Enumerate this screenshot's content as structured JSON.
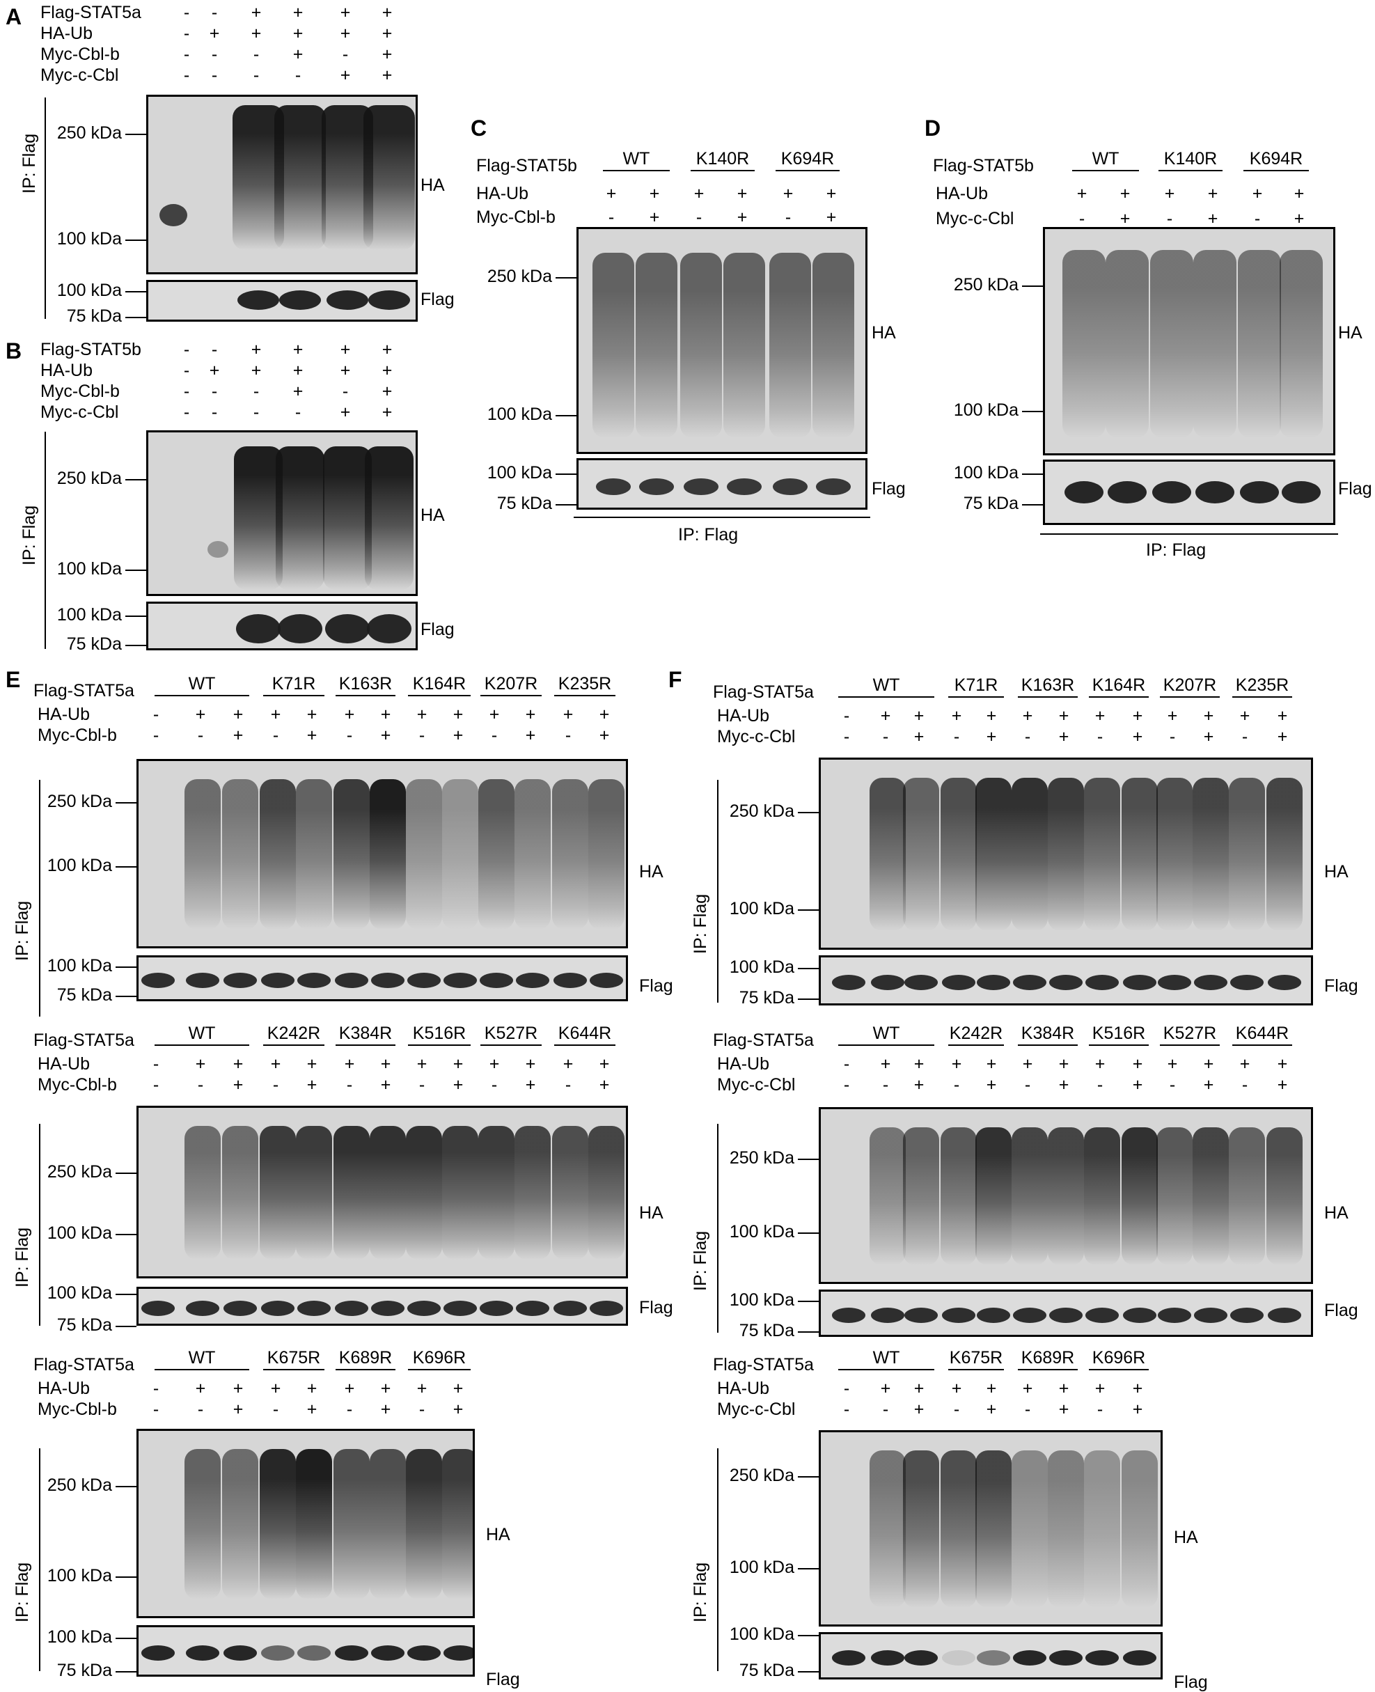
{
  "panels": {
    "A": "A",
    "B": "B",
    "C": "C",
    "D": "D",
    "E": "E",
    "F": "F"
  },
  "rows": {
    "flag_stat5a": "Flag-STAT5a",
    "flag_stat5b": "Flag-STAT5b",
    "ha_ub": "HA-Ub",
    "myc_cblb": "Myc-Cbl-b",
    "myc_ccbl": "Myc-c-Cbl"
  },
  "markers": {
    "kda250": "250 kDa",
    "kda100": "100 kDa",
    "kda75": "75 kDa"
  },
  "antibodies": {
    "ha": "HA",
    "flag": "Flag",
    "ip_flag": "IP: Flag"
  },
  "signs": {
    "plus": "+",
    "minus": "-"
  },
  "groups": {
    "wt": "WT",
    "k140r": "K140R",
    "k694r": "K694R",
    "k71r": "K71R",
    "k163r": "K163R",
    "k164r": "K164R",
    "k207r": "K207R",
    "k235r": "K235R",
    "k242r": "K242R",
    "k384r": "K384R",
    "k516r": "K516R",
    "k527r": "K527R",
    "k644r": "K644R",
    "k675r": "K675R",
    "k689r": "K689R",
    "k696r": "K696R"
  },
  "panelAB_pattern": {
    "flag": [
      "-",
      "-",
      "+",
      "+",
      "+",
      "+"
    ],
    "ha": [
      "-",
      "+",
      "+",
      "+",
      "+",
      "+"
    ],
    "cblb": [
      "-",
      "-",
      "-",
      "+",
      "-",
      "+"
    ],
    "ccbl": [
      "-",
      "-",
      "-",
      "-",
      "+",
      "+"
    ]
  },
  "panelCD_pattern": {
    "ha": [
      "+",
      "+",
      "+",
      "+",
      "+",
      "+"
    ],
    "e3": [
      "-",
      "+",
      "-",
      "+",
      "-",
      "+"
    ]
  },
  "panelEF_pattern": {
    "ha": [
      "-",
      "+",
      "+",
      "+",
      "+",
      "+",
      "+",
      "+",
      "+",
      "+",
      "+",
      "+",
      "+"
    ],
    "e3": [
      "-",
      "-",
      "+",
      "-",
      "+",
      "-",
      "+",
      "-",
      "+",
      "-",
      "+",
      "-",
      "+"
    ]
  }
}
